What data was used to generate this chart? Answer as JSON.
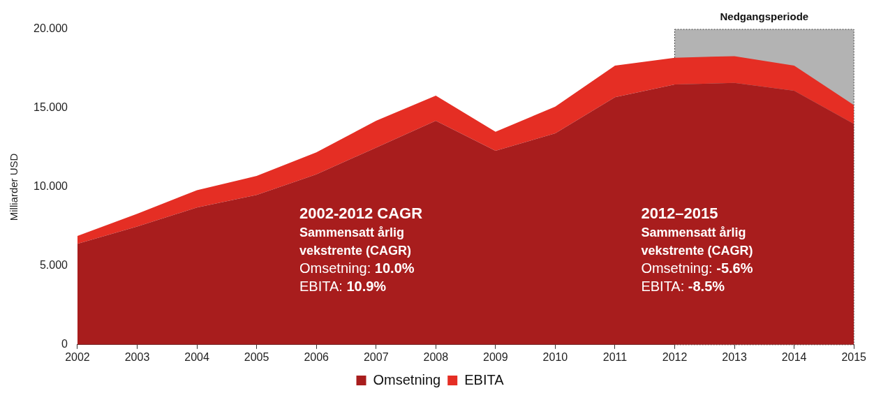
{
  "chart_data": {
    "type": "area",
    "stacked": true,
    "ylabel": "Milliarder USD",
    "categories": [
      "2002",
      "2003",
      "2004",
      "2005",
      "2006",
      "2007",
      "2008",
      "2009",
      "2010",
      "2011",
      "2012",
      "2013",
      "2014",
      "2015"
    ],
    "series": [
      {
        "name": "Omsetning",
        "color": "#a81d1d",
        "values": [
          6.4,
          7.5,
          8.7,
          9.5,
          10.8,
          12.5,
          14.2,
          12.3,
          13.4,
          15.7,
          16.5,
          16.6,
          16.1,
          14.0
        ]
      },
      {
        "name": "EBITA",
        "color": "#e52e24",
        "values": [
          0.5,
          0.8,
          1.1,
          1.2,
          1.4,
          1.7,
          1.6,
          1.2,
          1.7,
          2.0,
          1.7,
          1.7,
          1.6,
          1.2
        ]
      }
    ],
    "ylim": [
      0,
      20
    ],
    "yticks": [
      0,
      {
        "value": 5,
        "label": "5.000"
      },
      {
        "value": 10,
        "label": "10.000"
      },
      {
        "value": 15,
        "label": "15.000"
      },
      {
        "value": 20,
        "label": "20.000"
      }
    ],
    "bands": [
      {
        "axis": "x",
        "from": "2012",
        "to": "2015",
        "label": "Nedgangsperiode"
      }
    ],
    "annotations": [
      "2002-2012 CAGR\nSammensatt årlig\nvekstrente (CAGR)\nOmsetning: 10.0%\nEBITA: 10.9%",
      "2012–2015\nSammensatt årlig\nvekstrente (CAGR)\nOmsetning: -5.6%\nEBITA: -8.5%"
    ],
    "grid": false,
    "legend": "bottom"
  }
}
